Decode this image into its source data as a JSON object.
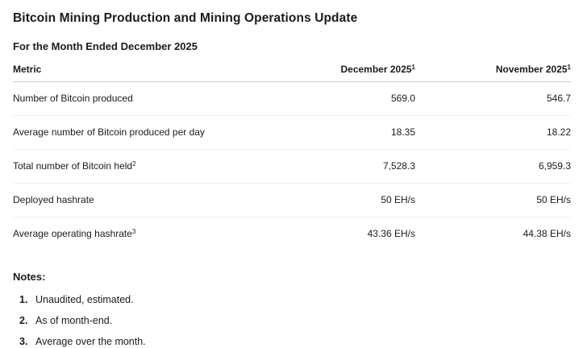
{
  "page": {
    "title": "Bitcoin Mining Production and Mining Operations Update",
    "subtitle": "For the Month Ended December 2025"
  },
  "table": {
    "columns": [
      {
        "label": "Metric",
        "sup": ""
      },
      {
        "label": "December 2025",
        "sup": "1"
      },
      {
        "label": "November 2025",
        "sup": "1"
      }
    ],
    "rows": [
      {
        "metric": "Number of Bitcoin produced",
        "sup": "",
        "december": "569.0",
        "november": "546.7"
      },
      {
        "metric": "Average number of Bitcoin produced per day",
        "sup": "",
        "december": "18.35",
        "november": "18.22"
      },
      {
        "metric": "Total number of Bitcoin held",
        "sup": "2",
        "december": "7,528.3",
        "november": "6,959.3"
      },
      {
        "metric": "Deployed hashrate",
        "sup": "",
        "december": "50 EH/s",
        "november": "50 EH/s"
      },
      {
        "metric": "Average operating hashrate",
        "sup": "3",
        "december": "43.36 EH/s",
        "november": "44.38 EH/s"
      }
    ]
  },
  "notes": {
    "heading": "Notes:",
    "items": [
      {
        "number": "1.",
        "text": "Unaudited, estimated."
      },
      {
        "number": "2.",
        "text": "As of month-end."
      },
      {
        "number": "3.",
        "text": "Average over the month."
      }
    ]
  },
  "colors": {
    "background": "#ffffff",
    "text": "#1b1b1b",
    "header_border": "#d2d2d2",
    "row_border": "#f1f1f1"
  }
}
